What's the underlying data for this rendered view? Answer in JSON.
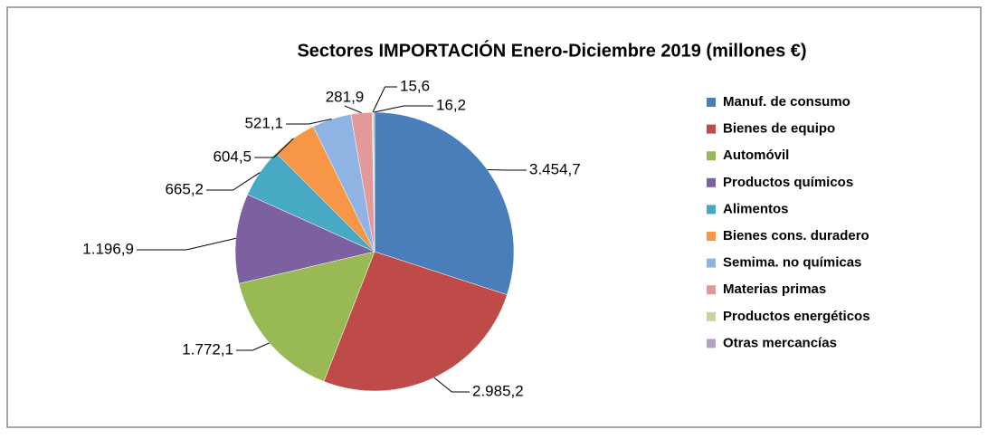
{
  "chart_data": {
    "type": "pie",
    "title": "Sectores IMPORTACIÓN Enero-Diciembre 2019 (millones €)",
    "categories": [
      "Manuf. de consumo",
      "Bienes de equipo",
      "Automóvil",
      "Productos químicos",
      "Alimentos",
      "Bienes cons. duradero",
      "Semima. no químicas",
      "Materias primas",
      "Productos energéticos",
      "Otras mercancías"
    ],
    "values": [
      3454.7,
      2985.2,
      1772.1,
      1196.9,
      665.2,
      604.5,
      521.1,
      281.9,
      15.6,
      16.2
    ],
    "value_labels": [
      "3.454,7",
      "2.985,2",
      "1.772,1",
      "1.196,9",
      "665,2",
      "604,5",
      "521,1",
      "281,9",
      "15,6",
      "16,2"
    ],
    "colors": [
      "#4a7ebb",
      "#be4b48",
      "#98b954",
      "#7d60a0",
      "#46aac5",
      "#f79646",
      "#8fb4e3",
      "#e3999a",
      "#c3d69b",
      "#b2a2c7"
    ],
    "legend": "right"
  }
}
